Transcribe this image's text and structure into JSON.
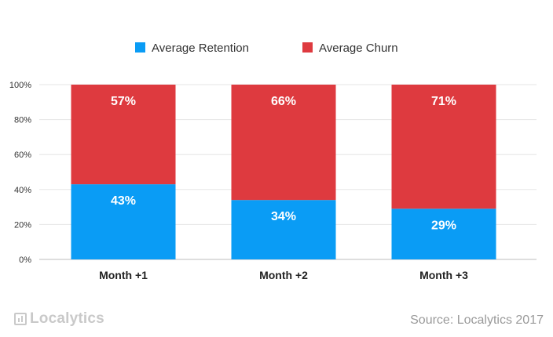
{
  "chart_data": {
    "type": "bar",
    "stacked": true,
    "categories": [
      "Month +1",
      "Month +2",
      "Month +3"
    ],
    "series": [
      {
        "name": "Average Retention",
        "values": [
          43,
          34,
          29
        ],
        "labels": [
          "43%",
          "34%",
          "29%"
        ],
        "color": "#0a9cf5"
      },
      {
        "name": "Average Churn",
        "values": [
          57,
          66,
          71
        ],
        "labels": [
          "57%",
          "66%",
          "71%"
        ],
        "color": "#de3a3f"
      }
    ],
    "ylim": [
      0,
      100
    ],
    "yticks": [
      0,
      20,
      40,
      60,
      80,
      100
    ],
    "ytick_labels": [
      "0%",
      "20%",
      "40%",
      "60%",
      "80%",
      "100%"
    ],
    "grid": true,
    "legend": "top-center",
    "xlabel": "",
    "ylabel": ""
  },
  "footer": {
    "logo_text": "Localytics",
    "source": "Source: Localytics 2017"
  }
}
